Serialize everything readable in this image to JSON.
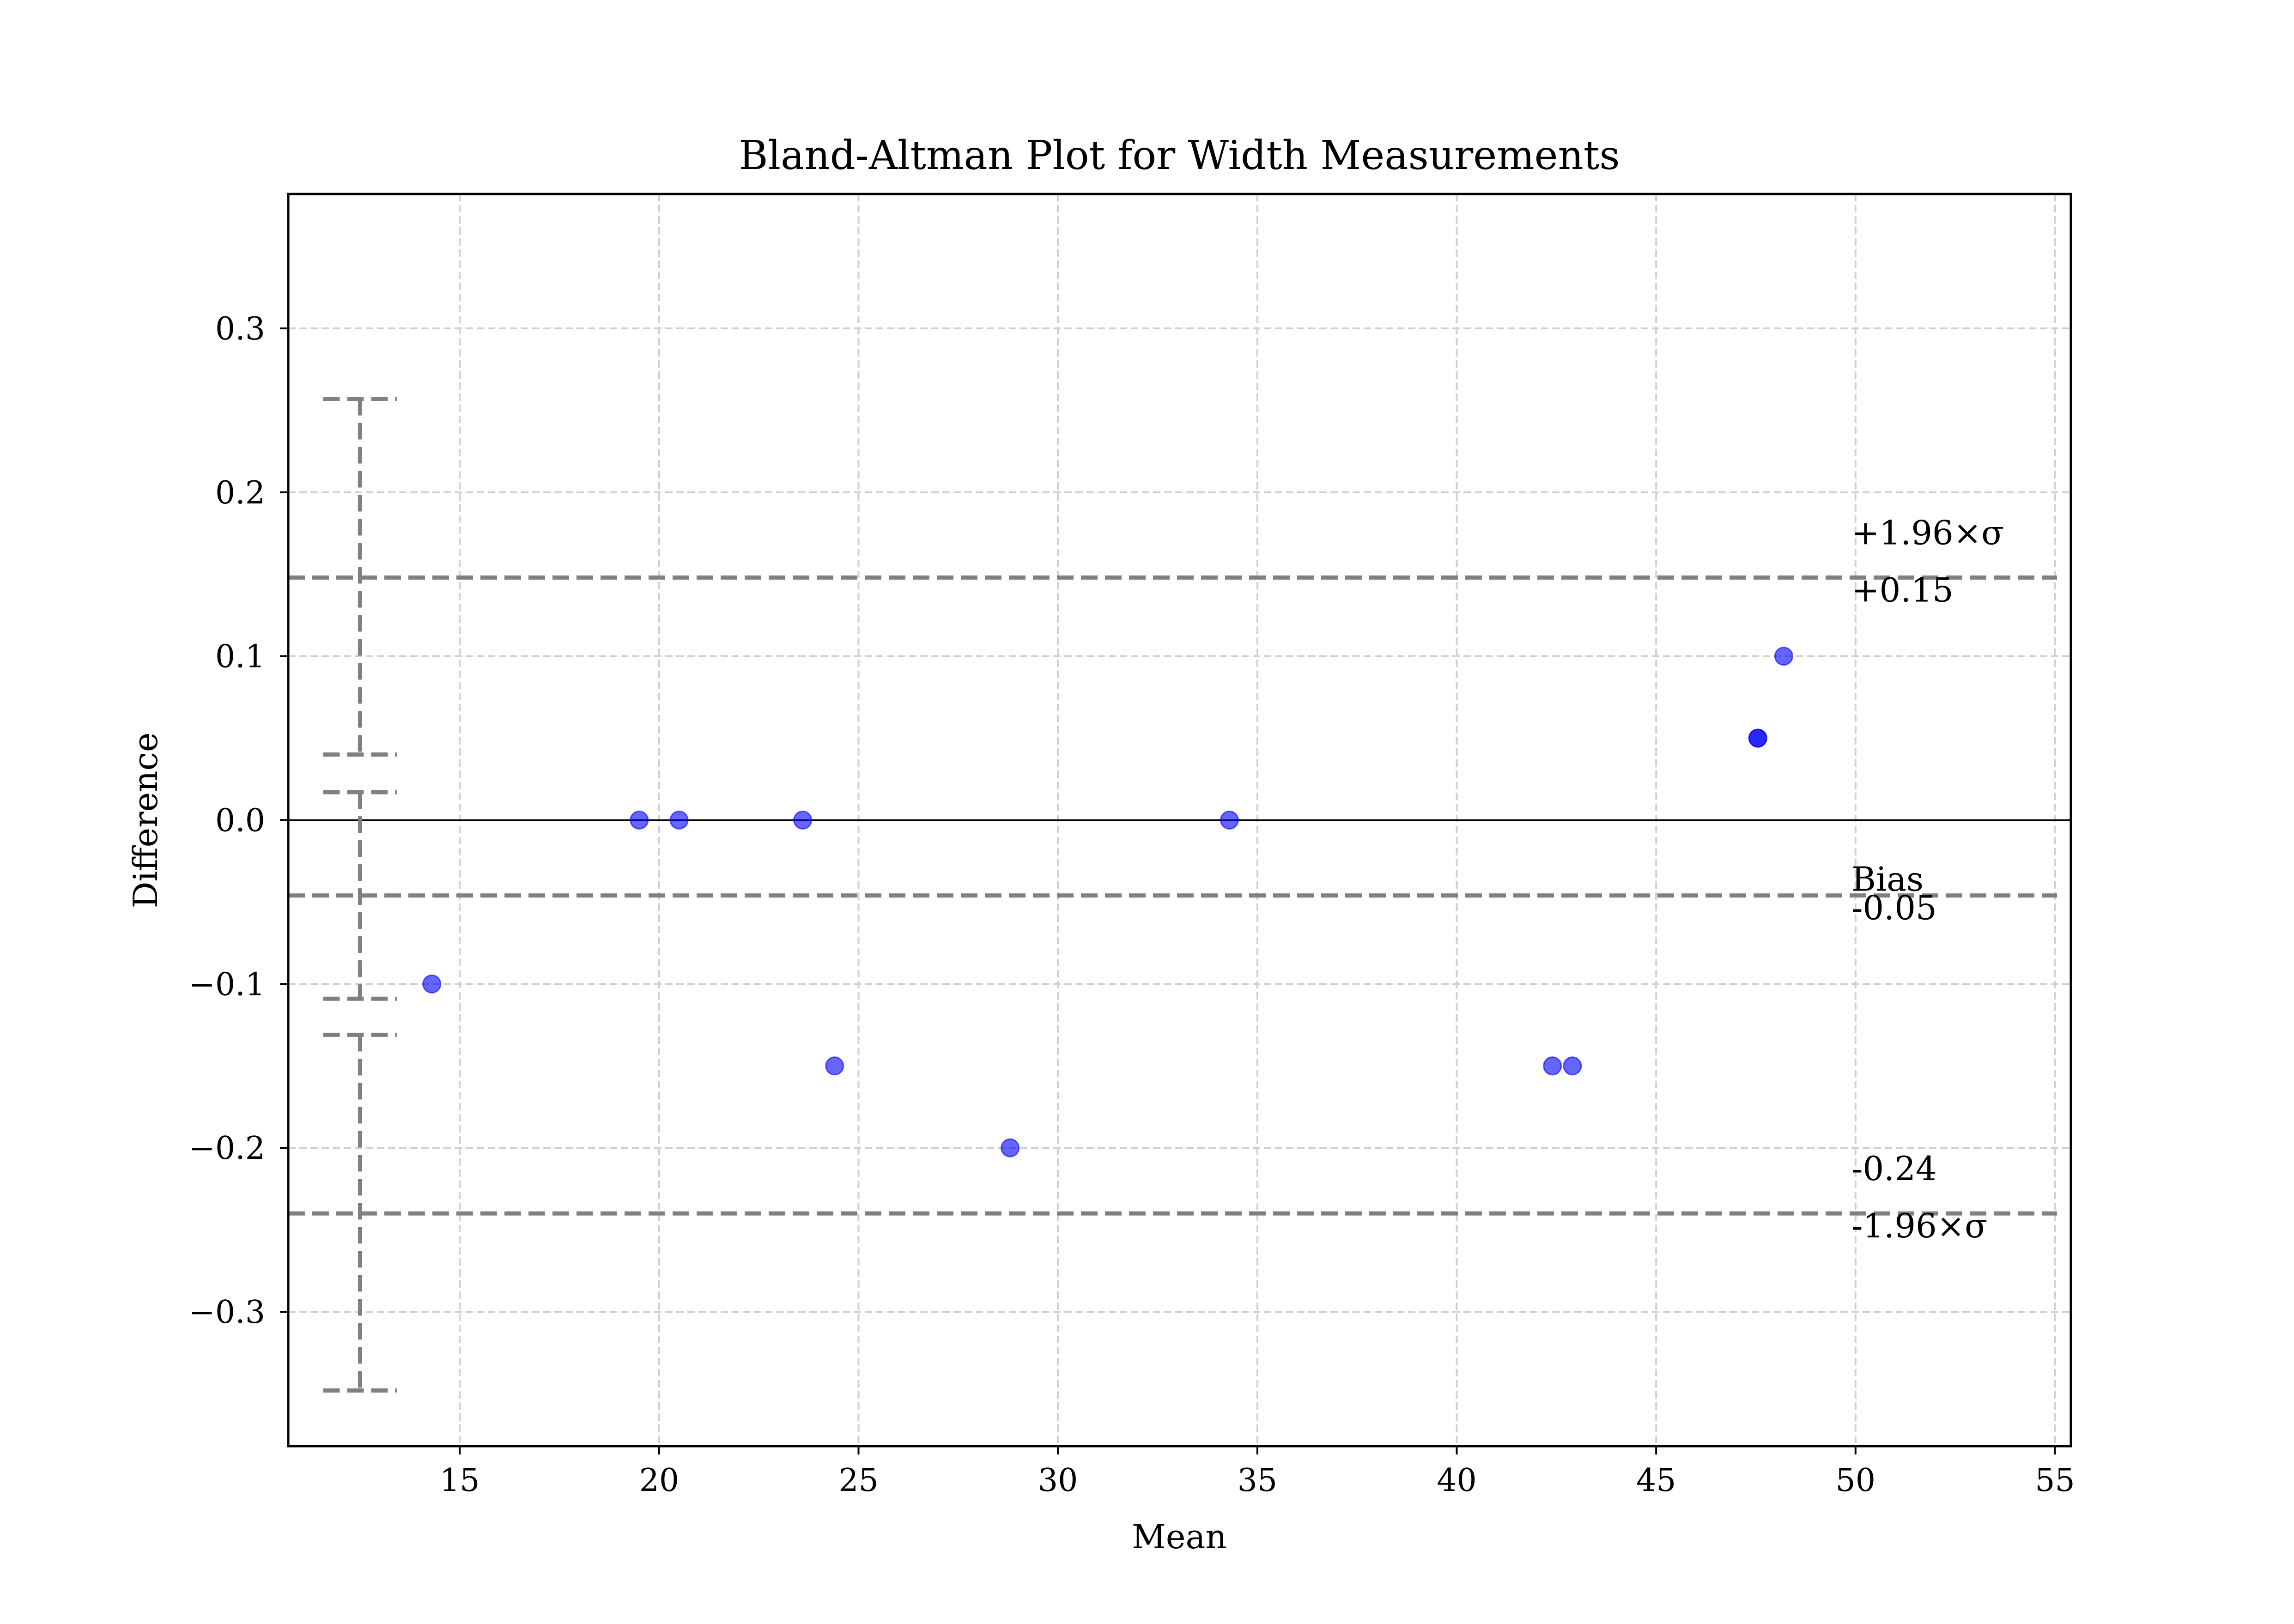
{
  "chart_data": {
    "type": "scatter",
    "title": "Bland-Altman Plot for Width Measurements",
    "xlabel": "Mean",
    "ylabel": "Difference",
    "xlim": [
      10.7,
      55.4
    ],
    "ylim": [
      -0.382,
      0.382
    ],
    "grid": true,
    "x_ticks": [
      15,
      20,
      25,
      30,
      35,
      40,
      45,
      50,
      55
    ],
    "y_ticks": [
      -0.3,
      -0.2,
      -0.1,
      0.0,
      0.1,
      0.2,
      0.3
    ],
    "x_tick_labels": [
      "15",
      "20",
      "25",
      "30",
      "35",
      "40",
      "45",
      "50",
      "55"
    ],
    "y_tick_labels": [
      "−0.3",
      "−0.2",
      "−0.1",
      "0.0",
      "0.1",
      "0.2",
      "0.3"
    ],
    "points": [
      {
        "x": 14.3,
        "y": -0.1
      },
      {
        "x": 19.5,
        "y": 0.0
      },
      {
        "x": 20.5,
        "y": 0.0
      },
      {
        "x": 23.6,
        "y": 0.0
      },
      {
        "x": 24.4,
        "y": -0.15
      },
      {
        "x": 28.8,
        "y": -0.2
      },
      {
        "x": 34.3,
        "y": 0.0
      },
      {
        "x": 42.4,
        "y": -0.15
      },
      {
        "x": 42.9,
        "y": -0.15
      },
      {
        "x": 47.55,
        "y": 0.05
      },
      {
        "x": 47.55,
        "y": 0.05
      },
      {
        "x": 48.2,
        "y": 0.1
      }
    ],
    "reference_lines": [
      {
        "name": "upper-loa",
        "y": 0.148,
        "label_top": "+1.96×σ",
        "label_bottom": "+0.15"
      },
      {
        "name": "bias",
        "y": -0.046,
        "label_top": "Bias",
        "label_bottom": "-0.05"
      },
      {
        "name": "lower-loa",
        "y": -0.24,
        "label_top": "-0.24",
        "label_bottom": "-1.96×σ"
      }
    ],
    "confidence_intervals": [
      {
        "name": "upper-loa-ci",
        "x": 12.5,
        "low": 0.04,
        "high": 0.257
      },
      {
        "name": "bias-ci",
        "x": 12.5,
        "low": -0.109,
        "high": 0.017
      },
      {
        "name": "lower-loa-ci",
        "x": 12.5,
        "low": -0.348,
        "high": -0.131
      }
    ],
    "colors": {
      "points": "#0000ff",
      "reference_lines": "#808080",
      "grid": "#d0d0d0",
      "zero_line": "#000000"
    }
  }
}
